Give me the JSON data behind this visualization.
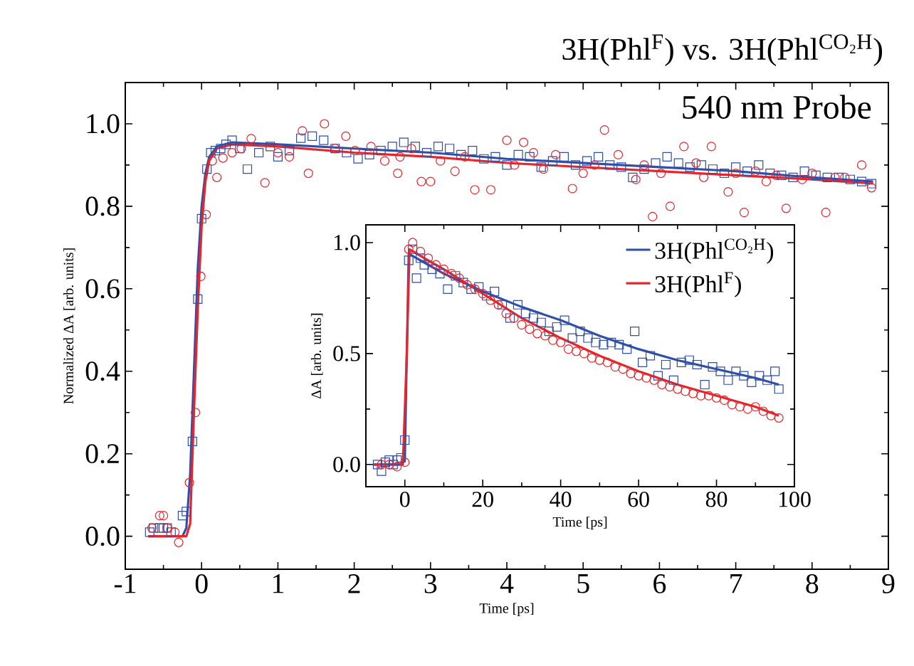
{
  "chart_data": [
    {
      "type": "scatter",
      "title": "3H(Phl$^{F}$) vs. 3H(Phl$^{CO₂H}$)",
      "xlabel": "Time [ps]",
      "ylabel": "Normalized ΔA [arb. units]",
      "annotations": [
        "540 nm Probe"
      ],
      "xlim": [
        -1,
        9
      ],
      "ylim": [
        -0.08,
        1.1
      ],
      "xticks": [
        -1,
        0,
        1,
        2,
        3,
        4,
        5,
        6,
        7,
        8,
        9
      ],
      "yticks": [
        {
          "value": 0,
          "label": "0.0"
        },
        {
          "value": 0.2,
          "label": "0.2"
        },
        {
          "value": 0.4,
          "label": "0.4"
        },
        {
          "value": 0.6,
          "label": "0.6"
        },
        {
          "value": 0.8,
          "label": "0.8"
        },
        {
          "value": 1.0,
          "label": "1.0"
        }
      ],
      "series": [
        {
          "marker": "square",
          "color": "#2f4fa8",
          "x": [
            -0.68,
            -0.63,
            -0.55,
            -0.5,
            -0.45,
            -0.4,
            -0.25,
            -0.2,
            -0.12,
            -0.05,
            0.0,
            0.07,
            0.12,
            0.18,
            0.25,
            0.32,
            0.4,
            0.5,
            0.6,
            0.75,
            0.9,
            1.0,
            1.15,
            1.3,
            1.45,
            1.6,
            1.75,
            1.9,
            2.05,
            2.2,
            2.35,
            2.5,
            2.65,
            2.8,
            2.95,
            3.1,
            3.25,
            3.4,
            3.55,
            3.7,
            3.85,
            4.0,
            4.15,
            4.3,
            4.45,
            4.6,
            4.75,
            4.9,
            5.05,
            5.2,
            5.35,
            5.5,
            5.65,
            5.8,
            5.95,
            6.1,
            6.25,
            6.4,
            6.55,
            6.7,
            6.85,
            7.0,
            7.15,
            7.3,
            7.45,
            7.6,
            7.75,
            7.9,
            8.05,
            8.2,
            8.35,
            8.5,
            8.65,
            8.78
          ],
          "values": [
            0.01,
            0.02,
            0.02,
            0.02,
            0.02,
            0.01,
            0.05,
            0.06,
            0.23,
            0.575,
            0.77,
            0.89,
            0.93,
            0.935,
            0.94,
            0.95,
            0.96,
            0.94,
            0.89,
            0.93,
            0.945,
            0.92,
            0.935,
            0.965,
            0.97,
            0.96,
            0.94,
            0.93,
            0.915,
            0.925,
            0.935,
            0.945,
            0.955,
            0.945,
            0.93,
            0.945,
            0.94,
            0.925,
            0.935,
            0.915,
            0.92,
            0.9,
            0.925,
            0.92,
            0.895,
            0.91,
            0.92,
            0.9,
            0.91,
            0.92,
            0.9,
            0.895,
            0.87,
            0.89,
            0.905,
            0.92,
            0.905,
            0.895,
            0.9,
            0.89,
            0.88,
            0.895,
            0.885,
            0.9,
            0.88,
            0.875,
            0.87,
            0.885,
            0.875,
            0.87,
            0.87,
            0.865,
            0.86,
            0.855
          ]
        },
        {
          "marker": "circle",
          "color": "#e8252b",
          "x": [
            -0.65,
            -0.55,
            -0.5,
            -0.45,
            -0.35,
            -0.3,
            -0.16,
            -0.08,
            -0.01,
            0.06,
            0.14,
            0.2,
            0.28,
            0.4,
            0.52,
            0.65,
            0.83,
            1.0,
            1.15,
            1.32,
            1.4,
            1.61,
            1.75,
            1.89,
            2.01,
            2.22,
            2.4,
            2.57,
            2.6,
            2.75,
            2.88,
            3.0,
            3.13,
            3.32,
            3.45,
            3.58,
            3.79,
            4.0,
            4.1,
            4.22,
            4.35,
            4.48,
            4.64,
            4.86,
            5.0,
            5.15,
            5.28,
            5.46,
            5.69,
            5.8,
            5.91,
            6.02,
            6.14,
            6.32,
            6.48,
            6.58,
            6.68,
            6.9,
            7.0,
            7.11,
            7.26,
            7.4,
            7.53,
            7.66,
            7.87,
            8.0,
            8.18,
            8.3,
            8.43,
            8.65,
            8.78
          ],
          "values": [
            0.02,
            0.05,
            0.05,
            0.02,
            0.01,
            -0.015,
            0.13,
            0.3,
            0.63,
            0.78,
            0.91,
            0.87,
            0.917,
            0.93,
            0.94,
            0.964,
            0.857,
            0.93,
            0.92,
            0.983,
            0.88,
            1.0,
            0.94,
            0.97,
            0.935,
            0.945,
            0.91,
            0.88,
            0.92,
            0.94,
            0.86,
            0.86,
            0.91,
            0.885,
            0.92,
            0.84,
            0.84,
            0.96,
            0.9,
            0.955,
            0.93,
            0.89,
            0.925,
            0.843,
            0.88,
            0.9,
            0.985,
            0.925,
            0.865,
            0.9,
            0.775,
            0.88,
            0.8,
            0.945,
            0.905,
            0.87,
            0.945,
            0.835,
            0.88,
            0.785,
            0.885,
            0.86,
            0.875,
            0.795,
            0.865,
            0.88,
            0.785,
            0.87,
            0.87,
            0.9,
            0.845
          ]
        },
        {
          "type": "line",
          "marker": "none",
          "color": "#2f4fa8",
          "x": [
            -0.7,
            -0.25,
            -0.2,
            -0.15,
            -0.1,
            -0.05,
            0,
            0.05,
            0.1,
            0.2,
            0.4,
            1,
            2,
            3,
            4,
            5,
            6,
            7,
            8,
            8.8
          ],
          "values": [
            0.0,
            0.0,
            0.02,
            0.15,
            0.4,
            0.65,
            0.8,
            0.88,
            0.92,
            0.945,
            0.955,
            0.95,
            0.94,
            0.93,
            0.915,
            0.905,
            0.895,
            0.885,
            0.87,
            0.86
          ]
        },
        {
          "type": "line",
          "marker": "none",
          "color": "#e8252b",
          "x": [
            -0.7,
            -0.2,
            -0.15,
            -0.1,
            -0.05,
            0,
            0.05,
            0.1,
            0.2,
            0.4,
            1,
            2,
            3,
            4,
            5,
            6,
            7,
            8,
            8.8
          ],
          "values": [
            0.0,
            0.0,
            0.03,
            0.3,
            0.55,
            0.75,
            0.86,
            0.91,
            0.94,
            0.95,
            0.945,
            0.93,
            0.92,
            0.905,
            0.895,
            0.885,
            0.875,
            0.865,
            0.855
          ]
        }
      ]
    },
    {
      "type": "scatter",
      "xlabel": "Time [ps]",
      "ylabel": "ΔA [arb. units]",
      "legend": "top right",
      "xlim": [
        -10,
        100
      ],
      "ylim": [
        -0.1,
        1.08
      ],
      "xticks": [
        0,
        20,
        40,
        60,
        80,
        100
      ],
      "yticks": [
        {
          "value": 0,
          "label": "0.0"
        },
        {
          "value": 0.5,
          "label": "0.5"
        },
        {
          "value": 1.0,
          "label": "1.0"
        }
      ],
      "series": [
        {
          "marker": "square",
          "color": "#2f4fa8",
          "x": [
            -7,
            -6,
            -5,
            -4,
            -3,
            -2,
            -1,
            0,
            1,
            2,
            3,
            4,
            5,
            7,
            9,
            11,
            13,
            15,
            17,
            19,
            21,
            23,
            25,
            27,
            29,
            31,
            33,
            35,
            37,
            39,
            41,
            43,
            45,
            47,
            49,
            51,
            53,
            55,
            57,
            59,
            61,
            63,
            65,
            67,
            69,
            71,
            73,
            75,
            77,
            79,
            81,
            83,
            85,
            87,
            89,
            91,
            93,
            95,
            96
          ],
          "values": [
            0.0,
            -0.03,
            0.01,
            0.02,
            0.0,
            0.02,
            0.03,
            0.11,
            0.92,
            0.97,
            0.84,
            0.93,
            0.9,
            0.88,
            0.86,
            0.79,
            0.85,
            0.82,
            0.79,
            0.8,
            0.76,
            0.78,
            0.72,
            0.66,
            0.72,
            0.68,
            0.66,
            0.64,
            0.6,
            0.62,
            0.65,
            0.57,
            0.6,
            0.57,
            0.55,
            0.54,
            0.55,
            0.54,
            0.52,
            0.6,
            0.46,
            0.49,
            0.4,
            0.45,
            0.38,
            0.46,
            0.47,
            0.45,
            0.36,
            0.44,
            0.42,
            0.38,
            0.42,
            0.4,
            0.37,
            0.4,
            0.38,
            0.42,
            0.34
          ]
        },
        {
          "marker": "circle",
          "color": "#e8252b",
          "x": [
            -6,
            -4,
            -2,
            0,
            1,
            2,
            4,
            6,
            8,
            10,
            12,
            14,
            16,
            18,
            20,
            22,
            24,
            26,
            28,
            30,
            32,
            34,
            36,
            38,
            40,
            42,
            44,
            46,
            48,
            50,
            52,
            54,
            56,
            58,
            60,
            62,
            64,
            66,
            68,
            70,
            72,
            74,
            76,
            78,
            80,
            82,
            84,
            86,
            88,
            90,
            92,
            94,
            96
          ],
          "values": [
            0.0,
            0.0,
            -0.01,
            0.01,
            0.97,
            1.0,
            0.96,
            0.93,
            0.9,
            0.88,
            0.86,
            0.84,
            0.81,
            0.79,
            0.77,
            0.74,
            0.72,
            0.68,
            0.66,
            0.63,
            0.61,
            0.59,
            0.58,
            0.56,
            0.55,
            0.52,
            0.51,
            0.5,
            0.48,
            0.47,
            0.46,
            0.44,
            0.43,
            0.41,
            0.4,
            0.39,
            0.38,
            0.36,
            0.35,
            0.34,
            0.33,
            0.32,
            0.31,
            0.31,
            0.3,
            0.29,
            0.27,
            0.26,
            0.25,
            0.26,
            0.24,
            0.22,
            0.21
          ]
        },
        {
          "type": "line",
          "marker": "none",
          "name": "3H(Phl$^{CO₂H}$)",
          "color": "#2f4fa8",
          "x": [
            -8,
            -1,
            0,
            0.5,
            1,
            5,
            10,
            20,
            30,
            40,
            50,
            60,
            70,
            80,
            90,
            96
          ],
          "values": [
            0.0,
            0.0,
            0.02,
            0.5,
            0.95,
            0.91,
            0.86,
            0.78,
            0.71,
            0.65,
            0.58,
            0.52,
            0.47,
            0.43,
            0.39,
            0.36
          ]
        },
        {
          "type": "line",
          "marker": "none",
          "name": "3H(Phl$^{F}$)",
          "color": "#e8252b",
          "x": [
            -8,
            -0.5,
            0.5,
            1.2,
            5,
            10,
            20,
            30,
            40,
            50,
            60,
            70,
            80,
            90,
            96
          ],
          "values": [
            0.0,
            0.0,
            0.5,
            0.97,
            0.93,
            0.88,
            0.77,
            0.66,
            0.57,
            0.49,
            0.42,
            0.36,
            0.31,
            0.26,
            0.22
          ]
        }
      ]
    }
  ]
}
